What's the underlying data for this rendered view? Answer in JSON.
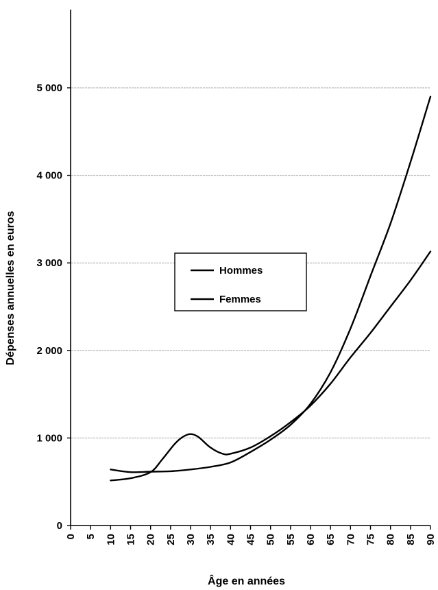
{
  "chart_data": {
    "type": "line",
    "xlabel": "Âge en années",
    "ylabel": "Dépenses annuelles en euros",
    "xlim": [
      0,
      90
    ],
    "ylim": [
      0,
      5000
    ],
    "x_ticks": [
      "0",
      "5",
      "10",
      "15",
      "20",
      "25",
      "30",
      "35",
      "40",
      "45",
      "50",
      "55",
      "60",
      "65",
      "70",
      "75",
      "80",
      "85",
      "90"
    ],
    "y_ticks": [
      {
        "value": 0,
        "label": "0"
      },
      {
        "value": 1000,
        "label": "1 000"
      },
      {
        "value": 2000,
        "label": "2 000"
      },
      {
        "value": 3000,
        "label": "3 000"
      },
      {
        "value": 4000,
        "label": "4 000"
      },
      {
        "value": 5000,
        "label": "5 000"
      }
    ],
    "grid": true,
    "legend_position": "center-left",
    "series": [
      {
        "name": "Hommes",
        "x": [
          10,
          15,
          20,
          25,
          30,
          35,
          40,
          45,
          50,
          55,
          60,
          65,
          70,
          75,
          80,
          85,
          90
        ],
        "values": [
          640,
          610,
          615,
          620,
          640,
          670,
          720,
          840,
          980,
          1150,
          1390,
          1750,
          2250,
          2850,
          3450,
          4150,
          4900
        ]
      },
      {
        "name": "Femmes",
        "x": [
          10,
          15,
          20,
          23,
          26,
          28,
          30,
          32,
          35,
          38,
          40,
          45,
          50,
          55,
          60,
          65,
          70,
          75,
          80,
          85,
          90
        ],
        "values": [
          515,
          540,
          610,
          760,
          930,
          1010,
          1045,
          1010,
          890,
          820,
          820,
          890,
          1020,
          1180,
          1370,
          1620,
          1920,
          2200,
          2500,
          2800,
          3130
        ]
      }
    ],
    "colors": {
      "line": "#000000",
      "grid": "#aaaaaa"
    }
  }
}
